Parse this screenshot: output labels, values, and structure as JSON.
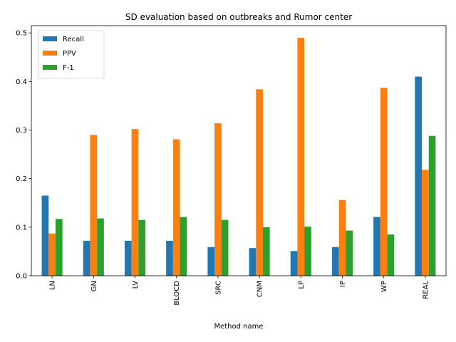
{
  "chart_data": {
    "type": "bar",
    "title": "SD evaluation based on outbreaks and Rumor center",
    "xlabel": "Method name",
    "ylabel": "",
    "ylim": [
      0,
      0.515
    ],
    "yticks": [
      "0.0",
      "0.1",
      "0.2",
      "0.3",
      "0.4",
      "0.5"
    ],
    "categories": [
      "LN",
      "GN",
      "LV",
      "BLOCD",
      "SRC",
      "CNM",
      "LP",
      "IP",
      "WP",
      "REAL"
    ],
    "series": [
      {
        "name": "Recall",
        "color": "#1f77b4",
        "values": [
          0.165,
          0.072,
          0.072,
          0.072,
          0.059,
          0.057,
          0.051,
          0.059,
          0.121,
          0.41
        ]
      },
      {
        "name": "PPV",
        "color": "#ff7f0e",
        "values": [
          0.087,
          0.29,
          0.302,
          0.281,
          0.314,
          0.384,
          0.49,
          0.156,
          0.387,
          0.218
        ]
      },
      {
        "name": "F-1",
        "color": "#2ca02c",
        "values": [
          0.117,
          0.118,
          0.115,
          0.121,
          0.115,
          0.1,
          0.101,
          0.093,
          0.085,
          0.288
        ]
      }
    ],
    "legend_position": "top-left",
    "grid": false
  }
}
